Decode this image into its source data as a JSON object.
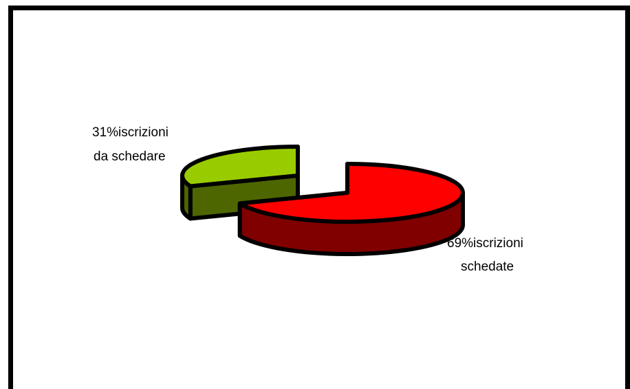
{
  "chart_data": {
    "type": "pie",
    "style": "3d-exploded",
    "title": "",
    "slices": [
      {
        "label": "iscrizioni schedate",
        "value": 69,
        "display": "69%iscrizioni",
        "display2": "schedate",
        "color": "#ff0000",
        "side_color": "#800000"
      },
      {
        "label": "iscrizioni da schedare",
        "value": 31,
        "display": "31%iscrizioni",
        "display2": "da schedare",
        "color": "#99cc00",
        "side_color": "#4d6600"
      }
    ],
    "legend": "none"
  }
}
